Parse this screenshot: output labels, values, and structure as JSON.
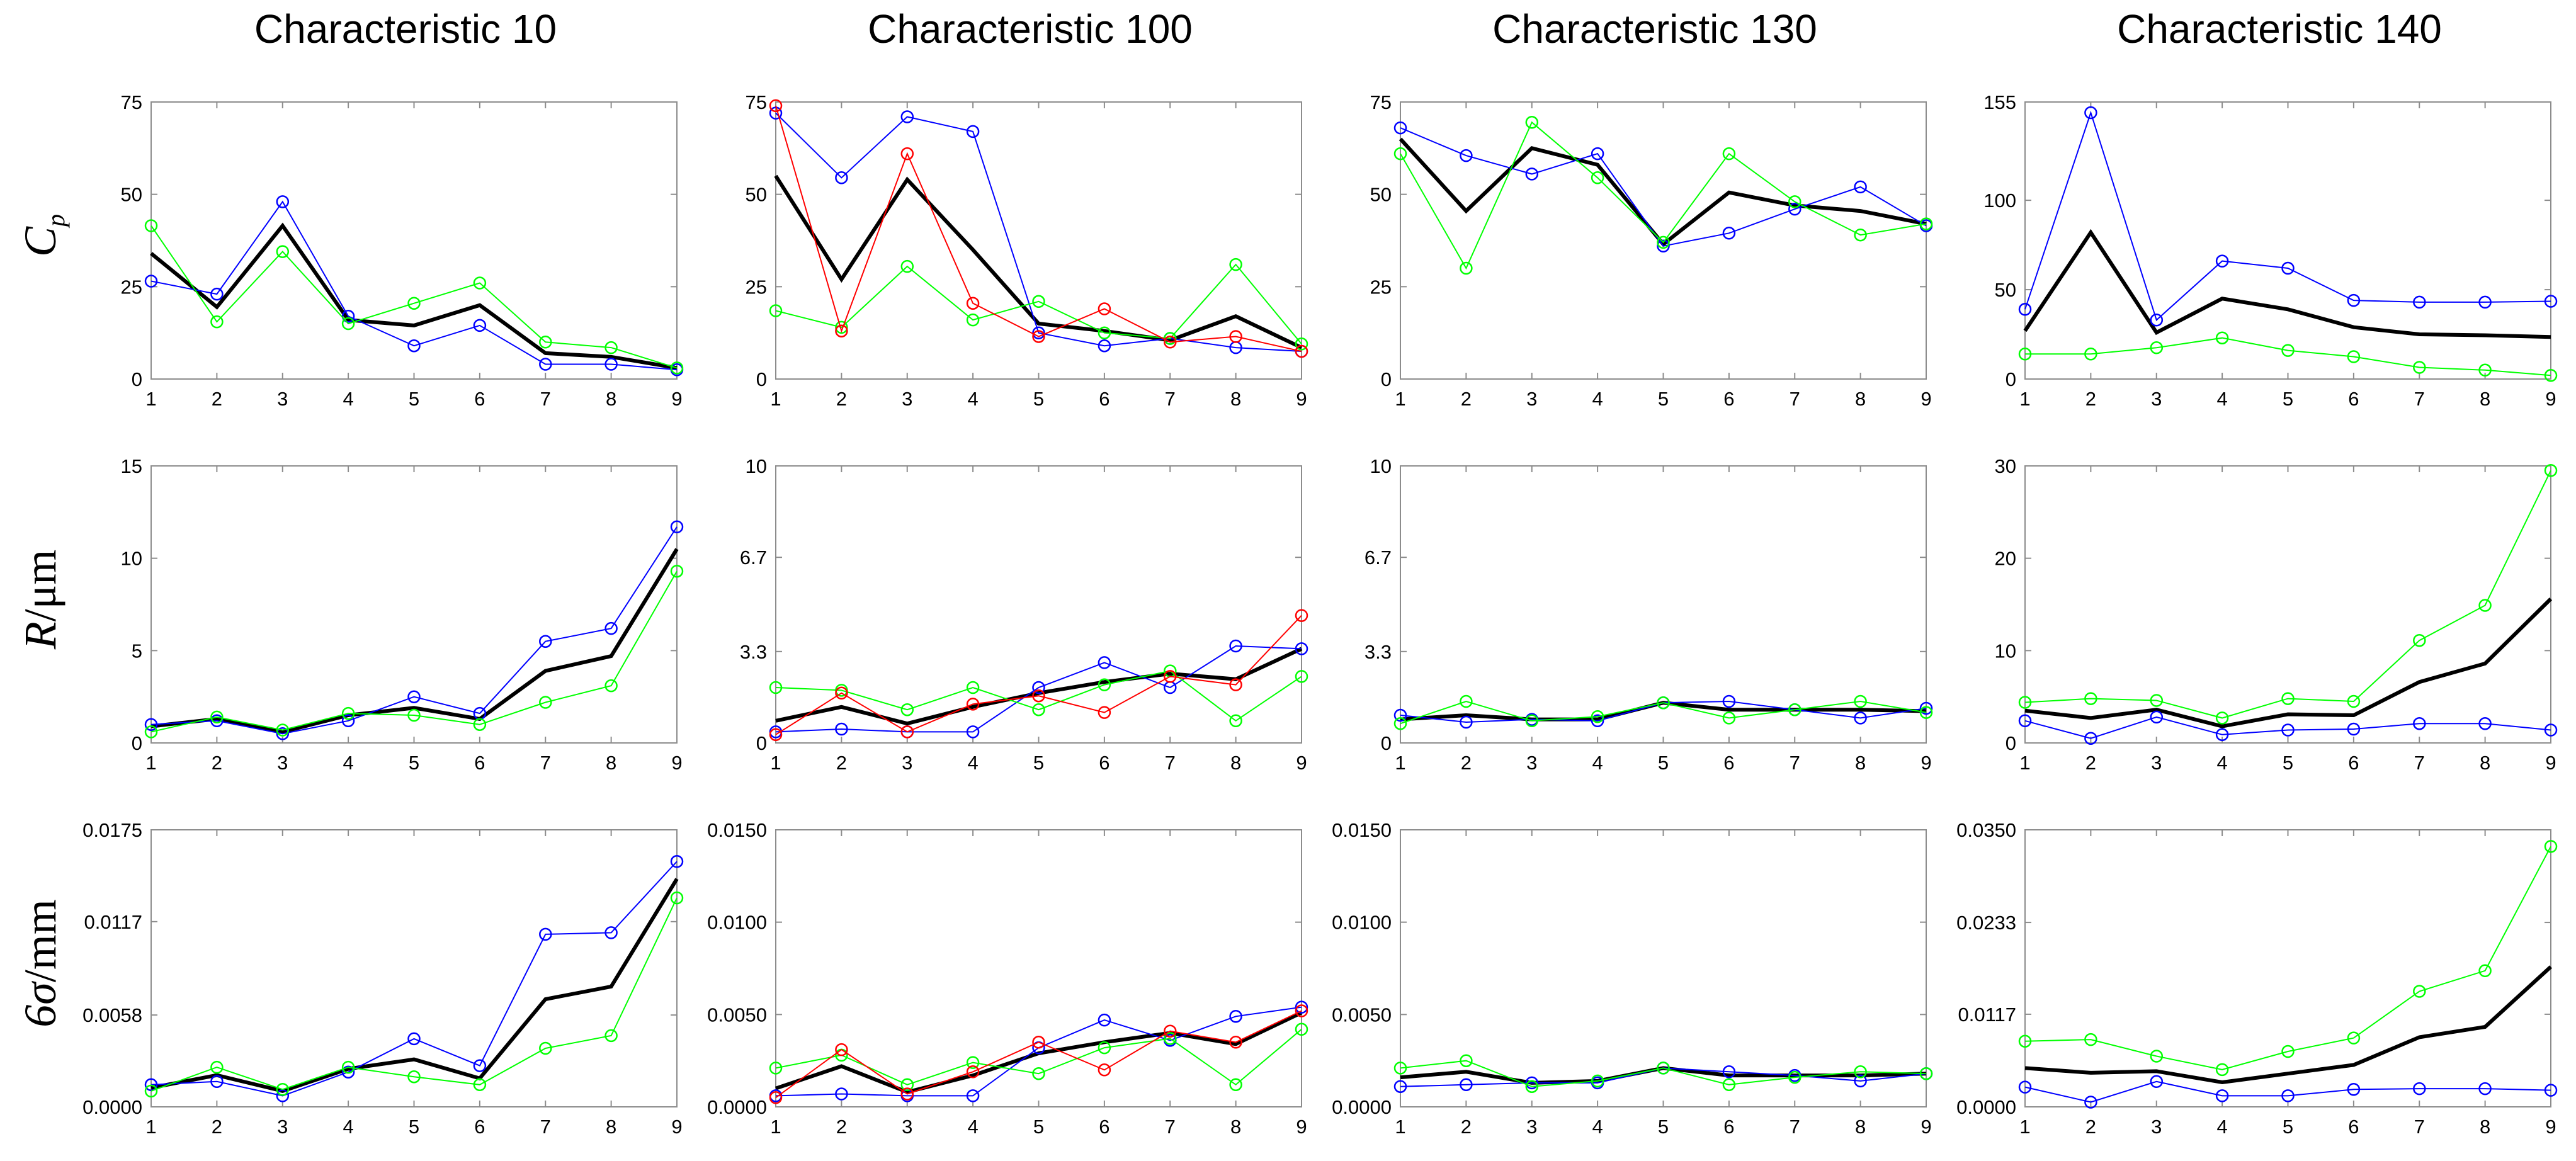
{
  "chart_data": {
    "type": "line",
    "x": [
      1,
      2,
      3,
      4,
      5,
      6,
      7,
      8,
      9
    ],
    "colors": {
      "mean": "#000000",
      "blue": "#0000ff",
      "green": "#00ff00",
      "red": "#ff0000"
    },
    "columns": [
      "Characteristic 10",
      "Characteristic 100",
      "Characteristic 130",
      "Characteristic 140"
    ],
    "rows": [
      {
        "label_main": "C",
        "label_sub": "p"
      },
      {
        "label_main": "R",
        "label_unit": "/μm"
      },
      {
        "label_main": "6σ",
        "label_unit": "/mm"
      }
    ],
    "panels": [
      {
        "yticks": [
          "0",
          "25",
          "50",
          "75"
        ],
        "ylim": [
          0,
          75
        ],
        "series": [
          {
            "name": "mean",
            "color": "#000000",
            "values": [
              34,
              19.5,
              41.5,
              16,
              14.5,
              20,
              7,
              6,
              3
            ]
          },
          {
            "name": "blue",
            "color": "#0000ff",
            "values": [
              26.5,
              23,
              48,
              17,
              9,
              14.5,
              4,
              4,
              2.5
            ]
          },
          {
            "name": "green",
            "color": "#00ff00",
            "values": [
              41.5,
              15.5,
              34.5,
              15,
              20.5,
              26,
              10,
              8.5,
              3
            ]
          }
        ]
      },
      {
        "yticks": [
          "0",
          "25",
          "50",
          "75"
        ],
        "ylim": [
          0,
          75
        ],
        "series": [
          {
            "name": "mean",
            "color": "#000000",
            "values": [
              55,
              27,
              54,
              35,
              15,
              13,
              10.5,
              17,
              8.5
            ]
          },
          {
            "name": "blue",
            "color": "#0000ff",
            "values": [
              72,
              54.5,
              71,
              67,
              12.5,
              9,
              11,
              8.5,
              7.5
            ]
          },
          {
            "name": "green",
            "color": "#00ff00",
            "values": [
              18.5,
              14,
              30.5,
              16,
              21,
              12.5,
              11,
              31,
              9.5
            ]
          },
          {
            "name": "red",
            "color": "#ff0000",
            "values": [
              74,
              13,
              61,
              20.5,
              11.5,
              19,
              10,
              11.5,
              7.5
            ]
          }
        ]
      },
      {
        "yticks": [
          "0",
          "25",
          "50",
          "75"
        ],
        "ylim": [
          0,
          75
        ],
        "series": [
          {
            "name": "mean",
            "color": "#000000",
            "values": [
              65,
              45.5,
              62.5,
              58,
              36.5,
              50.5,
              47,
              45.5,
              42
            ]
          },
          {
            "name": "blue",
            "color": "#0000ff",
            "values": [
              68,
              60.5,
              55.5,
              61,
              36,
              39.5,
              46,
              52,
              41.5
            ]
          },
          {
            "name": "green",
            "color": "#00ff00",
            "values": [
              61,
              30,
              69.5,
              54.5,
              37,
              61,
              48,
              39,
              42
            ]
          }
        ]
      },
      {
        "yticks": [
          "0",
          "50",
          "100",
          "155"
        ],
        "ylim": [
          0,
          155
        ],
        "series": [
          {
            "name": "mean",
            "color": "#000000",
            "values": [
              27,
              82,
              26,
              45,
              39,
              29,
              25,
              24.5,
              23.5
            ]
          },
          {
            "name": "blue",
            "color": "#0000ff",
            "values": [
              39,
              149,
              33,
              66,
              62,
              44,
              43,
              43,
              43.5
            ]
          },
          {
            "name": "green",
            "color": "#00ff00",
            "values": [
              14,
              14,
              17.5,
              23,
              16,
              12.5,
              6.5,
              5,
              2
            ]
          }
        ]
      },
      {
        "yticks": [
          "0",
          "5",
          "10",
          "15"
        ],
        "ylim": [
          0,
          15
        ],
        "series": [
          {
            "name": "mean",
            "color": "#000000",
            "values": [
              0.9,
              1.3,
              0.6,
              1.5,
              1.9,
              1.3,
              3.9,
              4.7,
              10.5
            ]
          },
          {
            "name": "blue",
            "color": "#0000ff",
            "values": [
              1.0,
              1.2,
              0.5,
              1.2,
              2.5,
              1.6,
              5.5,
              6.2,
              11.7
            ]
          },
          {
            "name": "green",
            "color": "#00ff00",
            "values": [
              0.6,
              1.4,
              0.7,
              1.6,
              1.5,
              1.0,
              2.2,
              3.1,
              9.3
            ]
          }
        ]
      },
      {
        "yticks": [
          "0",
          "3.3",
          "6.7",
          "10"
        ],
        "ylim": [
          0,
          10
        ],
        "series": [
          {
            "name": "mean",
            "color": "#000000",
            "values": [
              0.8,
              1.3,
              0.7,
              1.3,
              1.8,
              2.2,
              2.5,
              2.3,
              3.4
            ]
          },
          {
            "name": "blue",
            "color": "#0000ff",
            "values": [
              0.4,
              0.5,
              0.4,
              0.4,
              2.0,
              2.9,
              2.0,
              3.5,
              3.4
            ]
          },
          {
            "name": "green",
            "color": "#00ff00",
            "values": [
              2.0,
              1.9,
              1.2,
              2.0,
              1.2,
              2.1,
              2.6,
              0.8,
              2.4
            ]
          },
          {
            "name": "red",
            "color": "#ff0000",
            "values": [
              0.3,
              1.8,
              0.4,
              1.4,
              1.7,
              1.1,
              2.4,
              2.1,
              4.6
            ]
          }
        ]
      },
      {
        "yticks": [
          "0",
          "3.3",
          "6.7",
          "10"
        ],
        "ylim": [
          0,
          10
        ],
        "series": [
          {
            "name": "mean",
            "color": "#000000",
            "values": [
              0.85,
              1.0,
              0.85,
              0.85,
              1.45,
              1.2,
              1.2,
              1.2,
              1.15
            ]
          },
          {
            "name": "blue",
            "color": "#0000ff",
            "values": [
              1.0,
              0.75,
              0.85,
              0.8,
              1.45,
              1.5,
              1.2,
              0.9,
              1.25
            ]
          },
          {
            "name": "green",
            "color": "#00ff00",
            "values": [
              0.7,
              1.5,
              0.8,
              0.95,
              1.45,
              0.9,
              1.2,
              1.5,
              1.1
            ]
          }
        ]
      },
      {
        "yticks": [
          "0",
          "10",
          "20",
          "30"
        ],
        "ylim": [
          0,
          30
        ],
        "series": [
          {
            "name": "mean",
            "color": "#000000",
            "values": [
              3.5,
              2.7,
              3.6,
              1.8,
              3.1,
              3.0,
              6.6,
              8.6,
              15.6
            ]
          },
          {
            "name": "blue",
            "color": "#0000ff",
            "values": [
              2.4,
              0.5,
              2.8,
              0.9,
              1.4,
              1.5,
              2.1,
              2.1,
              1.4
            ]
          },
          {
            "name": "green",
            "color": "#00ff00",
            "values": [
              4.4,
              4.8,
              4.6,
              2.7,
              4.8,
              4.5,
              11.1,
              14.9,
              29.5
            ]
          }
        ]
      },
      {
        "yticks": [
          "0.0000",
          "0.0058",
          "0.0117",
          "0.0175"
        ],
        "ylim": [
          0,
          0.0175
        ],
        "series": [
          {
            "name": "mean",
            "color": "#000000",
            "values": [
              0.0012,
              0.002,
              0.001,
              0.0024,
              0.003,
              0.0018,
              0.0068,
              0.0076,
              0.0144
            ]
          },
          {
            "name": "blue",
            "color": "#0000ff",
            "values": [
              0.0014,
              0.0016,
              0.0007,
              0.0022,
              0.0043,
              0.0026,
              0.0109,
              0.011,
              0.0155
            ]
          },
          {
            "name": "green",
            "color": "#00ff00",
            "values": [
              0.001,
              0.0025,
              0.0011,
              0.0025,
              0.0019,
              0.0014,
              0.0037,
              0.0045,
              0.0132
            ]
          }
        ]
      },
      {
        "yticks": [
          "0.0000",
          "0.0050",
          "0.0100",
          "0.0150"
        ],
        "ylim": [
          0,
          0.015
        ],
        "series": [
          {
            "name": "mean",
            "color": "#000000",
            "values": [
              0.001,
              0.0022,
              0.0008,
              0.0017,
              0.0029,
              0.0035,
              0.004,
              0.0034,
              0.0051
            ]
          },
          {
            "name": "blue",
            "color": "#0000ff",
            "values": [
              0.0006,
              0.0007,
              0.0006,
              0.0006,
              0.0032,
              0.0047,
              0.0036,
              0.0049,
              0.0054
            ]
          },
          {
            "name": "green",
            "color": "#00ff00",
            "values": [
              0.0021,
              0.0028,
              0.0012,
              0.0024,
              0.0018,
              0.0032,
              0.0037,
              0.0012,
              0.0042
            ]
          },
          {
            "name": "red",
            "color": "#ff0000",
            "values": [
              0.0005,
              0.0031,
              0.0007,
              0.0019,
              0.0035,
              0.002,
              0.0041,
              0.0035,
              0.0052
            ]
          }
        ]
      },
      {
        "yticks": [
          "0.0000",
          "0.0050",
          "0.0100",
          "0.0150"
        ],
        "ylim": [
          0,
          0.015
        ],
        "series": [
          {
            "name": "mean",
            "color": "#000000",
            "values": [
              0.0016,
              0.0019,
              0.0013,
              0.0014,
              0.0021,
              0.0017,
              0.0017,
              0.0017,
              0.0018
            ]
          },
          {
            "name": "blue",
            "color": "#0000ff",
            "values": [
              0.0011,
              0.0012,
              0.0013,
              0.0013,
              0.0021,
              0.0019,
              0.0017,
              0.0014,
              0.0018
            ]
          },
          {
            "name": "green",
            "color": "#00ff00",
            "values": [
              0.0021,
              0.0025,
              0.0011,
              0.0014,
              0.0021,
              0.0012,
              0.0016,
              0.0019,
              0.0018
            ]
          }
        ]
      },
      {
        "yticks": [
          "0.0000",
          "0.0117",
          "0.0233",
          "0.0350"
        ],
        "ylim": [
          0,
          0.035
        ],
        "series": [
          {
            "name": "mean",
            "color": "#000000",
            "values": [
              0.0049,
              0.0043,
              0.0045,
              0.0031,
              0.0042,
              0.0053,
              0.0088,
              0.0101,
              0.0177
            ]
          },
          {
            "name": "blue",
            "color": "#0000ff",
            "values": [
              0.0025,
              0.0006,
              0.0032,
              0.0014,
              0.0014,
              0.0022,
              0.0023,
              0.0023,
              0.0021
            ]
          },
          {
            "name": "green",
            "color": "#00ff00",
            "values": [
              0.0083,
              0.0085,
              0.0064,
              0.0047,
              0.007,
              0.0087,
              0.0146,
              0.0172,
              0.0329
            ]
          }
        ]
      }
    ]
  }
}
